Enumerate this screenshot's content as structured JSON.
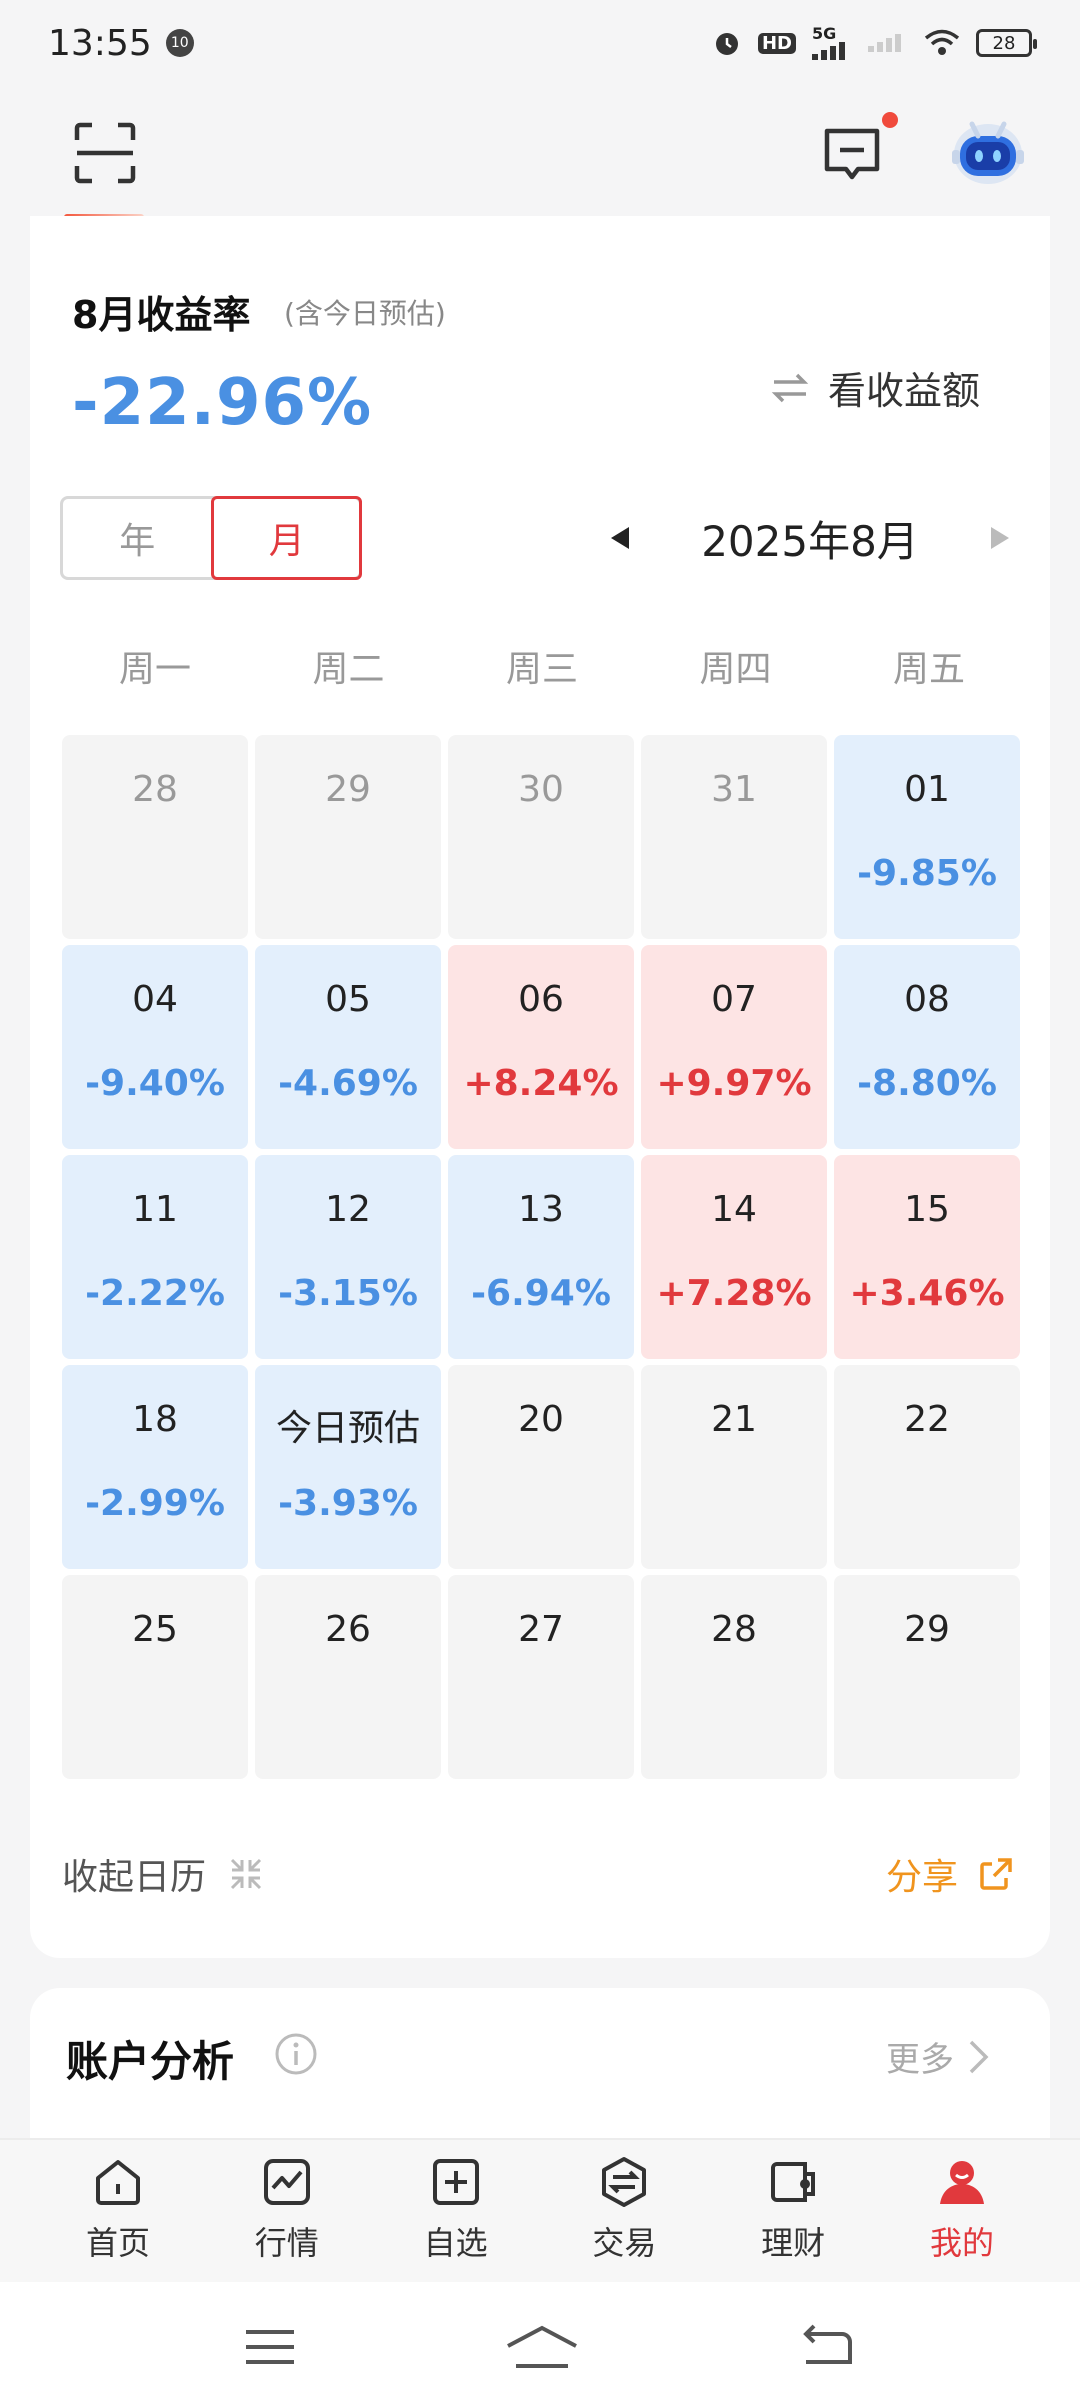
{
  "status_bar": {
    "time": "13:55",
    "notif_badge": "10",
    "signal": "5G",
    "hd": "HD",
    "battery": "28"
  },
  "header": {
    "has_message_dot": true
  },
  "returns": {
    "title": "8月收益率",
    "note": "(含今日预估)",
    "value": "-22.96%",
    "toggle_label": "看收益额"
  },
  "segment": {
    "options": [
      "年",
      "月"
    ],
    "selected": "月"
  },
  "month_nav": {
    "label": "2025年8月"
  },
  "weekdays": [
    "周一",
    "周二",
    "周三",
    "周四",
    "周五"
  ],
  "calendar": [
    {
      "day": "28",
      "pct": "",
      "tone": "prev"
    },
    {
      "day": "29",
      "pct": "",
      "tone": "prev"
    },
    {
      "day": "30",
      "pct": "",
      "tone": "prev"
    },
    {
      "day": "31",
      "pct": "",
      "tone": "prev"
    },
    {
      "day": "01",
      "pct": "-9.85%",
      "tone": "blue"
    },
    {
      "day": "04",
      "pct": "-9.40%",
      "tone": "blue"
    },
    {
      "day": "05",
      "pct": "-4.69%",
      "tone": "blue"
    },
    {
      "day": "06",
      "pct": "+8.24%",
      "tone": "red"
    },
    {
      "day": "07",
      "pct": "+9.97%",
      "tone": "red"
    },
    {
      "day": "08",
      "pct": "-8.80%",
      "tone": "blue"
    },
    {
      "day": "11",
      "pct": "-2.22%",
      "tone": "blue"
    },
    {
      "day": "12",
      "pct": "-3.15%",
      "tone": "blue"
    },
    {
      "day": "13",
      "pct": "-6.94%",
      "tone": "blue"
    },
    {
      "day": "14",
      "pct": "+7.28%",
      "tone": "red"
    },
    {
      "day": "15",
      "pct": "+3.46%",
      "tone": "red"
    },
    {
      "day": "18",
      "pct": "-2.99%",
      "tone": "blue"
    },
    {
      "day": "今日预估",
      "pct": "-3.93%",
      "tone": "blue"
    },
    {
      "day": "20",
      "pct": "",
      "tone": "future"
    },
    {
      "day": "21",
      "pct": "",
      "tone": "future"
    },
    {
      "day": "22",
      "pct": "",
      "tone": "future"
    },
    {
      "day": "25",
      "pct": "",
      "tone": "future"
    },
    {
      "day": "26",
      "pct": "",
      "tone": "future"
    },
    {
      "day": "27",
      "pct": "",
      "tone": "future"
    },
    {
      "day": "28",
      "pct": "",
      "tone": "future"
    },
    {
      "day": "29",
      "pct": "",
      "tone": "future"
    }
  ],
  "footer": {
    "collapse_label": "收起日历",
    "share_label": "分享"
  },
  "analysis": {
    "title": "账户分析",
    "more_label": "更多"
  },
  "bottom_nav": [
    {
      "label": "首页",
      "icon": "home-icon"
    },
    {
      "label": "行情",
      "icon": "chart-icon"
    },
    {
      "label": "自选",
      "icon": "plus-box-icon"
    },
    {
      "label": "交易",
      "icon": "exchange-icon"
    },
    {
      "label": "理财",
      "icon": "wallet-icon"
    },
    {
      "label": "我的",
      "icon": "profile-icon",
      "active": true
    }
  ],
  "colors": {
    "accent_red": "#e1393d",
    "loss_blue": "#4a90e2",
    "share_orange": "#f0941e"
  }
}
